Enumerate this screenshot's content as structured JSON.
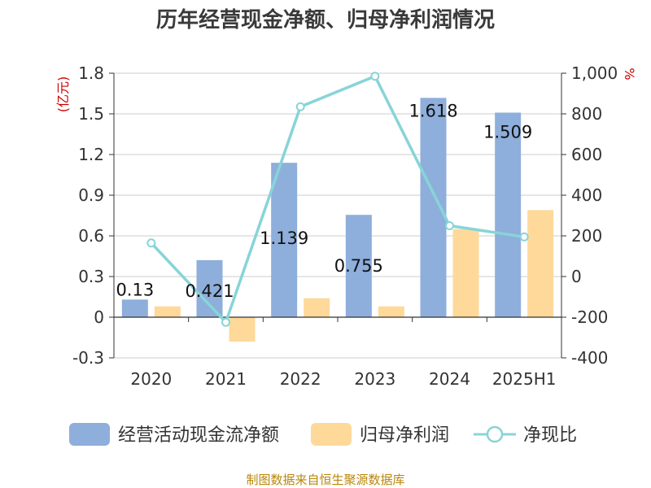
{
  "colors": {
    "bar1": "#8eaedb",
    "bar2": "#fed99a",
    "line": "#88d4d8",
    "grid": "#cccccc",
    "axis": "#333333",
    "unit": "#cc0000",
    "source": "#b8860b"
  },
  "chart_data": {
    "type": "bar",
    "title": "历年经营现金净额、归母净利润情况",
    "categories": [
      "2020",
      "2021",
      "2022",
      "2023",
      "2024",
      "2025H1"
    ],
    "y_left": {
      "unit": "(亿元)",
      "ylim": [
        -0.3,
        1.8
      ],
      "ticks": [
        -0.3,
        0,
        0.3,
        0.6,
        0.9,
        1.2,
        1.5,
        1.8
      ],
      "tick_labels": [
        "-0.3",
        "0",
        "0.3",
        "0.6",
        "0.9",
        "1.2",
        "1.5",
        "1.8"
      ]
    },
    "y_right": {
      "unit": "%",
      "ylim": [
        -400,
        1000
      ],
      "ticks": [
        -400,
        -200,
        0,
        200,
        400,
        600,
        800,
        1000
      ],
      "tick_labels": [
        "-400",
        "-200",
        "0",
        "200",
        "400",
        "600",
        "800",
        "1,000"
      ]
    },
    "series": [
      {
        "name": "经营活动现金流净额",
        "kind": "bar",
        "axis": "left",
        "values": [
          0.13,
          0.421,
          1.139,
          0.755,
          1.618,
          1.509
        ],
        "labels": [
          "0.13",
          "0.421",
          "1.139",
          "0.755",
          "1.618",
          "1.509"
        ]
      },
      {
        "name": "归母净利润",
        "kind": "bar",
        "axis": "left",
        "values": [
          0.08,
          -0.18,
          0.14,
          0.08,
          0.65,
          0.79
        ]
      },
      {
        "name": "净现比",
        "kind": "line",
        "axis": "right",
        "values": [
          165,
          -225,
          835,
          985,
          250,
          195
        ]
      }
    ],
    "grid": true,
    "legend_position": "bottom"
  },
  "source_text": "制图数据来自恒生聚源数据库"
}
